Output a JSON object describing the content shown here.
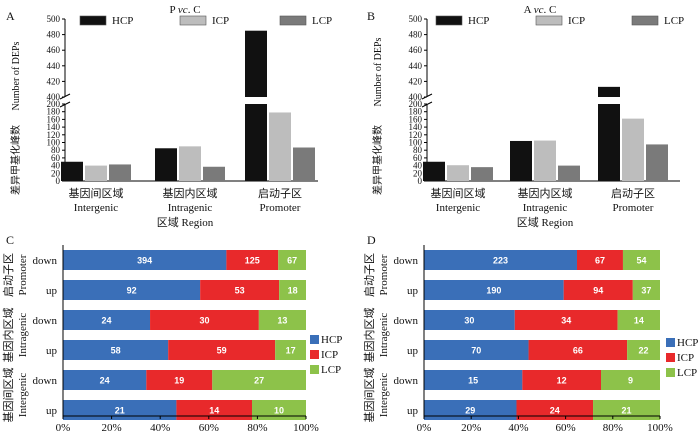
{
  "chart_data": [
    {
      "type": "bar",
      "panel_letter": "A",
      "title": "P vc. C",
      "title_prefix": "P ",
      "title_italic": "vc",
      "title_suffix": ". C",
      "ylabel_cn": "差异甲基化峰数",
      "ylabel_en": "Number of DEPs",
      "xlabel": "区域  Region",
      "categories": [
        {
          "cn": "基因间区域",
          "en": "Intergenic"
        },
        {
          "cn": "基因内区域",
          "en": "Intragenic"
        },
        {
          "cn": "启动子区",
          "en": "Promoter"
        }
      ],
      "series": [
        {
          "name": "HCP",
          "color": "#111111",
          "values": [
            50,
            85,
            485
          ]
        },
        {
          "name": "ICP",
          "color": "#bdbdbd",
          "values": [
            40,
            90,
            178
          ]
        },
        {
          "name": "LCP",
          "color": "#7a7a7a",
          "values": [
            43,
            37,
            87
          ]
        }
      ],
      "axis_lower": {
        "range": [
          0,
          200
        ],
        "ticks": [
          0,
          20,
          40,
          60,
          80,
          100,
          120,
          140,
          160,
          180,
          200
        ]
      },
      "axis_upper": {
        "range": [
          400,
          500
        ],
        "ticks": [
          400,
          420,
          440,
          460,
          480,
          500
        ]
      }
    },
    {
      "type": "bar",
      "panel_letter": "B",
      "title": "A vc. C",
      "title_prefix": "A ",
      "title_italic": "vc",
      "title_suffix": ". C",
      "ylabel_cn": "差异甲基化峰数",
      "ylabel_en": "Number of DEPs",
      "xlabel": "区域  Region",
      "categories": [
        {
          "cn": "基因间区域",
          "en": "Intergenic"
        },
        {
          "cn": "基因内区域",
          "en": "Intragenic"
        },
        {
          "cn": "启动子区",
          "en": "Promoter"
        }
      ],
      "series": [
        {
          "name": "HCP",
          "color": "#111111",
          "values": [
            50,
            104,
            413
          ]
        },
        {
          "name": "ICP",
          "color": "#bdbdbd",
          "values": [
            41,
            105,
            162
          ]
        },
        {
          "name": "LCP",
          "color": "#7a7a7a",
          "values": [
            36,
            40,
            95
          ]
        }
      ],
      "axis_lower": {
        "range": [
          0,
          200
        ],
        "ticks": [
          0,
          20,
          40,
          60,
          80,
          100,
          120,
          140,
          160,
          180,
          200
        ]
      },
      "axis_upper": {
        "range": [
          400,
          500
        ],
        "ticks": [
          400,
          420,
          440,
          460,
          480,
          500
        ]
      }
    },
    {
      "type": "bar",
      "orientation": "horizontal",
      "stacked": "percent",
      "panel_letter": "C",
      "row_labels": [
        "down",
        "up",
        "down",
        "up",
        "down",
        "up"
      ],
      "groups": [
        {
          "cn": "启动子区",
          "en": "Promoter"
        },
        {
          "cn": "基因内区域",
          "en": "Intragenic"
        },
        {
          "cn": "基因间区域",
          "en": "Intergenic"
        }
      ],
      "series": [
        {
          "name": "HCP",
          "color": "#3a6fb8",
          "values": [
            394,
            92,
            24,
            58,
            24,
            21
          ]
        },
        {
          "name": "ICP",
          "color": "#e8292b",
          "values": [
            125,
            53,
            30,
            59,
            19,
            14
          ]
        },
        {
          "name": "LCP",
          "color": "#8dc24a",
          "values": [
            67,
            18,
            13,
            17,
            27,
            10
          ]
        }
      ],
      "xticks": [
        "0%",
        "20%",
        "40%",
        "60%",
        "80%",
        "100%"
      ]
    },
    {
      "type": "bar",
      "orientation": "horizontal",
      "stacked": "percent",
      "panel_letter": "D",
      "row_labels": [
        "down",
        "up",
        "down",
        "up",
        "down",
        "up"
      ],
      "groups": [
        {
          "cn": "启动子区",
          "en": "Promoter"
        },
        {
          "cn": "基因内区域",
          "en": "Intragenic"
        },
        {
          "cn": "基因间区域",
          "en": "Intergenic"
        }
      ],
      "series": [
        {
          "name": "HCP",
          "color": "#3a6fb8",
          "values": [
            223,
            190,
            30,
            70,
            15,
            29
          ]
        },
        {
          "name": "ICP",
          "color": "#e8292b",
          "values": [
            67,
            94,
            34,
            66,
            12,
            24
          ]
        },
        {
          "name": "LCP",
          "color": "#8dc24a",
          "values": [
            54,
            37,
            14,
            22,
            9,
            21
          ]
        }
      ],
      "xticks": [
        "0%",
        "20%",
        "40%",
        "60%",
        "80%",
        "100%"
      ]
    }
  ]
}
